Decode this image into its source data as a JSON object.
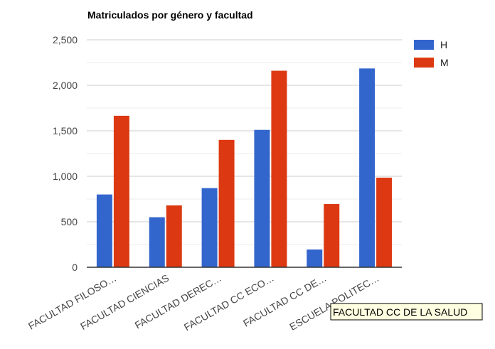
{
  "chart_data": {
    "type": "bar",
    "title": "Matriculados por género y facultad",
    "categories": [
      "FACULTAD FILOSO…",
      "FACULTAD CIENCIAS",
      "FACULTAD DEREC…",
      "FACULTAD CC ECO…",
      "FACULTAD CC DE…",
      "ESCUELA POLITEC…"
    ],
    "series": [
      {
        "name": "H",
        "color": "#3366cc",
        "values": [
          800,
          550,
          870,
          1510,
          195,
          2185
        ]
      },
      {
        "name": "M",
        "color": "#dc3912",
        "values": [
          1665,
          680,
          1400,
          2160,
          695,
          985
        ]
      }
    ],
    "y_ticks": [
      0,
      500,
      1000,
      1500,
      2000,
      2500
    ],
    "y_tick_labels": [
      "0",
      "500",
      "1,000",
      "1,500",
      "2,000",
      "2,500"
    ],
    "ylim": [
      0,
      2500
    ],
    "xlabel": "",
    "ylabel": "",
    "grid": true,
    "legend_position": "right",
    "tooltip_text": "FACULTAD CC DE LA SALUD"
  }
}
